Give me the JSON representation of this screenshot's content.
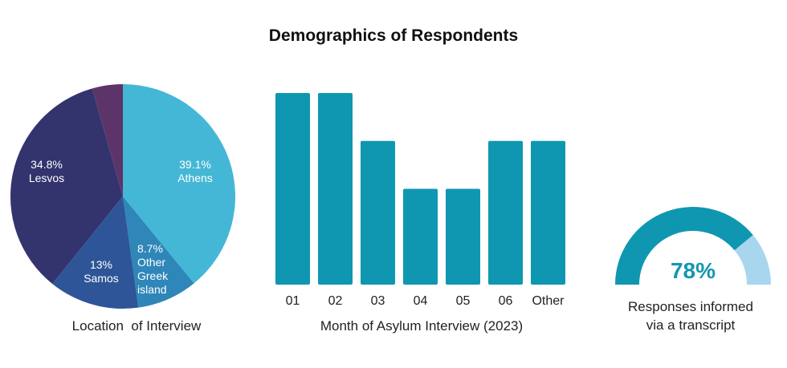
{
  "title": "Demographics of Respondents",
  "chart_data": [
    {
      "type": "pie",
      "caption": "Location  of Interview",
      "slices": [
        {
          "name": "Athens",
          "value": 39.1,
          "label": "39.1%",
          "color": "#45b7d6"
        },
        {
          "name": "Other Greek island",
          "value": 8.7,
          "label": "8.7%",
          "color": "#2f86b8"
        },
        {
          "name": "Samos",
          "value": 13,
          "label": "13%",
          "color": "#2e5598"
        },
        {
          "name": "Lesvos",
          "value": 34.8,
          "label": "34.8%",
          "color": "#33346e"
        },
        {
          "name": "Unlabeled",
          "value": 4.4,
          "label": "",
          "color": "#5d3469"
        }
      ],
      "label_lines": {
        "athens": [
          "39.1%",
          "Athens"
        ],
        "other": [
          "8.7%",
          "Other",
          "Greek",
          "island"
        ],
        "samos": [
          "13%",
          "Samos"
        ],
        "lesvos": [
          "34.8%",
          "Lesvos"
        ]
      }
    },
    {
      "type": "bar",
      "xlabel": "Month of Asylum Interview (2023)",
      "categories": [
        "01",
        "02",
        "03",
        "04",
        "05",
        "06",
        "Other"
      ],
      "values": [
        4,
        4,
        3,
        2,
        2,
        3,
        3
      ],
      "ylim": [
        0,
        4
      ],
      "color": "#0f97b1"
    },
    {
      "type": "gauge",
      "value": 78,
      "value_label": "78%",
      "caption_lines": [
        "Responses informed",
        "via a transcript"
      ],
      "fill_color": "#0f97b1",
      "rest_color": "#a8d6ee"
    }
  ]
}
